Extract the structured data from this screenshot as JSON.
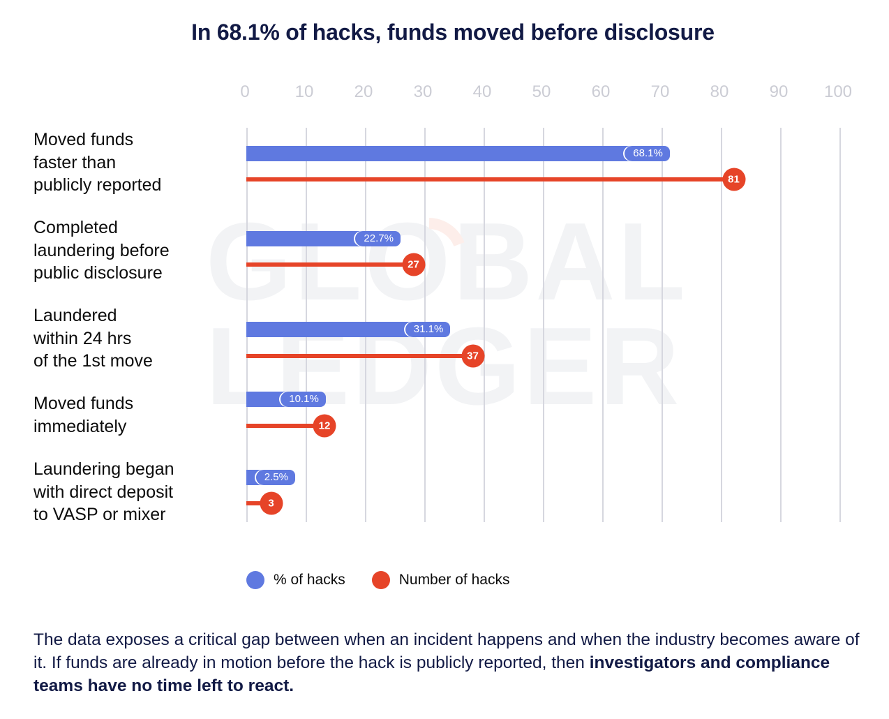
{
  "title": "In 68.1% of hacks, funds moved before disclosure",
  "watermark": {
    "line1": "GLOBAL",
    "line2": "LEDGER"
  },
  "axis": {
    "ticks": [
      "0",
      "10",
      "20",
      "30",
      "40",
      "50",
      "60",
      "70",
      "80",
      "90",
      "100"
    ]
  },
  "rows": [
    {
      "label": [
        "Moved funds",
        "faster than",
        "publicly reported"
      ],
      "pct_label": "68.1%",
      "count_label": "81"
    },
    {
      "label": [
        "Completed",
        "laundering before",
        "public disclosure"
      ],
      "pct_label": "22.7%",
      "count_label": "27"
    },
    {
      "label": [
        "Laundered",
        "within 24 hrs",
        "of the 1st move"
      ],
      "pct_label": "31.1%",
      "count_label": "37"
    },
    {
      "label": [
        "Moved funds",
        "immediately"
      ],
      "pct_label": "10.1%",
      "count_label": "12"
    },
    {
      "label": [
        "Laundering began",
        "with direct deposit",
        "to VASP or mixer"
      ],
      "pct_label": "2.5%",
      "count_label": "3"
    }
  ],
  "legend": [
    {
      "label": "% of hacks",
      "color": "#5f79e0"
    },
    {
      "label": "Number of hacks",
      "color": "#e64428"
    }
  ],
  "footer": {
    "normal": "The data exposes a critical gap between when an incident happens and when the industry becomes aware of it. If funds are already in motion before the hack is publicly reported, then ",
    "bold": "investigators and compliance teams have no time left to react."
  },
  "colors": {
    "pct": "#5f79e0",
    "count": "#e64428",
    "title": "#121a45",
    "grid": "#d6d7df",
    "tick": "#cbccd4"
  },
  "chart_data": {
    "type": "bar",
    "orientation": "horizontal",
    "title": "In 68.1% of hacks, funds moved before disclosure",
    "categories": [
      "Moved funds faster than publicly reported",
      "Completed laundering before public disclosure",
      "Laundered within 24 hrs of the 1st move",
      "Moved funds immediately",
      "Laundering began with direct deposit to VASP or mixer"
    ],
    "series": [
      {
        "name": "% of hacks",
        "color": "#5f79e0",
        "style": "bar",
        "values": [
          68.1,
          22.7,
          31.1,
          10.1,
          2.5
        ]
      },
      {
        "name": "Number of hacks",
        "color": "#e64428",
        "style": "lollipop",
        "values": [
          81,
          27,
          37,
          12,
          3
        ]
      }
    ],
    "xlabel": "",
    "ylabel": "",
    "xlim": [
      0,
      100
    ],
    "xticks": [
      0,
      10,
      20,
      30,
      40,
      50,
      60,
      70,
      80,
      90,
      100
    ],
    "grid": "vertical",
    "legend_position": "bottom"
  }
}
